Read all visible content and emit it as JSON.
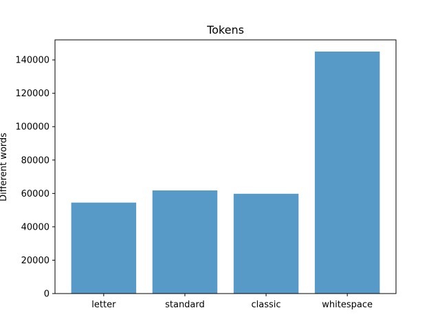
{
  "chart_data": {
    "type": "bar",
    "title": "Tokens",
    "xlabel": "",
    "ylabel": "Different words",
    "categories": [
      "letter",
      "standard",
      "classic",
      "whitespace"
    ],
    "values": [
      54500,
      61800,
      59800,
      145000
    ],
    "ylim": [
      0,
      152000
    ],
    "yticks": [
      0,
      20000,
      40000,
      60000,
      80000,
      100000,
      120000,
      140000
    ],
    "grid": false,
    "bar_color": "#5799c7"
  }
}
